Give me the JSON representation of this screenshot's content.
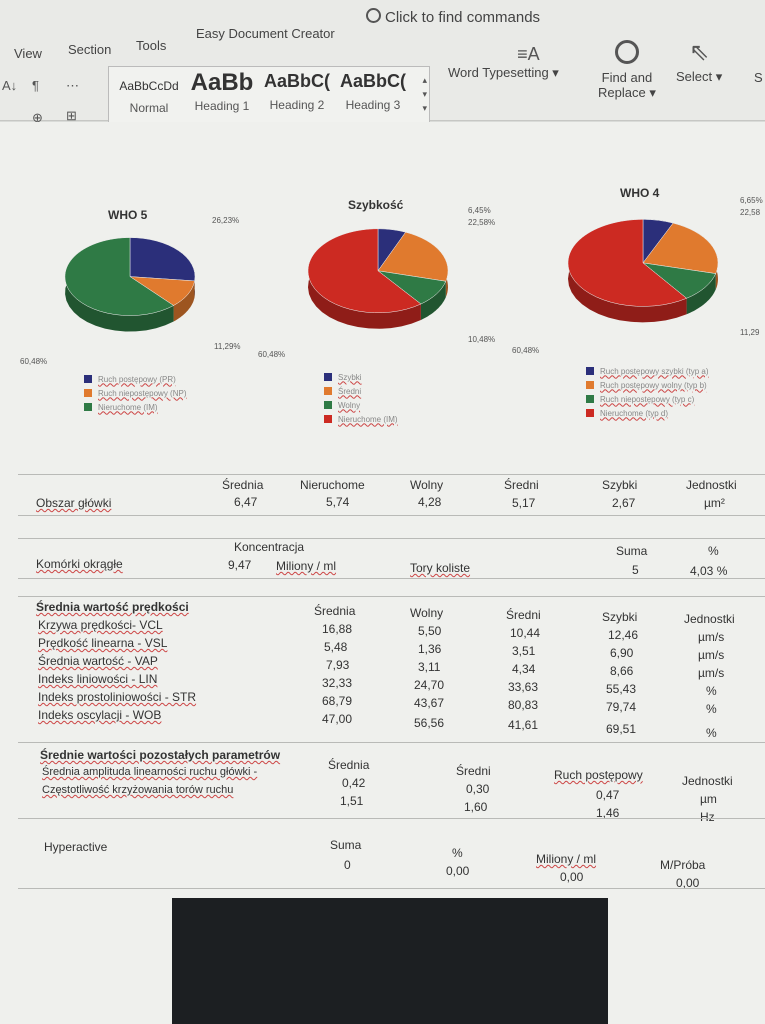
{
  "ribbon": {
    "menu": [
      "View",
      "Section",
      "Tools",
      "Easy Document Creator"
    ],
    "search_placeholder": "Click to find commands",
    "tool_glyphs": [
      "A↓",
      "¶",
      "⋯",
      "⊕",
      "⊞"
    ],
    "styles": [
      {
        "preview": "AaBbCcDd",
        "name": "Normal"
      },
      {
        "preview": "AaBb",
        "name": "Heading 1"
      },
      {
        "preview": "AaBbC(",
        "name": "Heading 2"
      },
      {
        "preview": "AaBbC(",
        "name": "Heading 3"
      }
    ],
    "word_typesetting": "Word Typesetting",
    "find_replace_1": "Find and",
    "find_replace_2": "Replace",
    "select": "Select",
    "cut_letter": "S"
  },
  "charts": [
    {
      "title": "WHO 5",
      "labels": [
        "26,23%",
        "11,29%",
        "60,48%"
      ],
      "slices": [
        26.23,
        11.29,
        60.48
      ],
      "colors": [
        "#2b2f7a",
        "#e07a2e",
        "#2f7a45"
      ],
      "legend": [
        "Ruch postępowy (PR)",
        "Ruch niepostępowy (NP)",
        "Nieruchome (IM)"
      ]
    },
    {
      "title": "Szybkość",
      "labels": [
        "6,45%",
        "22,58%",
        "10,48%",
        "60,48%"
      ],
      "slices": [
        6.45,
        22.58,
        10.48,
        60.48
      ],
      "colors": [
        "#2b2f7a",
        "#e07a2e",
        "#2f7a45",
        "#cc2a22"
      ],
      "legend": [
        "Szybki",
        "Średni",
        "Wolny",
        "Nieruchome (IM)"
      ]
    },
    {
      "title": "WHO 4",
      "labels": [
        "6,65%",
        "22,58",
        "11,29",
        "60,48%"
      ],
      "slices": [
        6.65,
        22.58,
        11.29,
        60.48
      ],
      "colors": [
        "#2b2f7a",
        "#e07a2e",
        "#2f7a45",
        "#cc2a22"
      ],
      "legend": [
        "Ruch postępowy szybki (typ a)",
        "Ruch postępowy wolny (typ b)",
        "Ruch niepostępowy (typ c)",
        "Nieruchome (typ d)"
      ]
    }
  ],
  "head_area": {
    "label": "Obszar główki",
    "headers": [
      "Średnia",
      "Nieruchome",
      "Wolny",
      "Średni",
      "Szybki",
      "Jednostki"
    ],
    "values": [
      "6,47",
      "5,74",
      "4,28",
      "5,17",
      "2,67",
      "µm²"
    ]
  },
  "round_cells": {
    "label": "Komórki okrągłe",
    "conc_header": "Koncentracja",
    "conc_value": "9,47",
    "conc_unit": "Miliony / ml",
    "tracks_label": "Tory koliste",
    "sum_header": "Suma",
    "sum_value": "5",
    "pct_header": "%",
    "pct_value": "4,03 %"
  },
  "velocity": {
    "title": "Średnia wartość prędkości",
    "headers": [
      "Średnia",
      "Wolny",
      "Średni",
      "Szybki",
      "Jednostki"
    ],
    "rows": [
      {
        "label": "Krzywa prędkości- VCL",
        "values": [
          "16,88",
          "5,50",
          "10,44",
          "12,46",
          "µm/s"
        ]
      },
      {
        "label": "Prędkość linearna - VSL",
        "values": [
          "5,48",
          "1,36",
          "3,51",
          "6,90",
          "µm/s"
        ]
      },
      {
        "label": "Średnia wartość - VAP",
        "values": [
          "7,93",
          "3,11",
          "4,34",
          "8,66",
          "µm/s"
        ]
      },
      {
        "label": "Indeks liniowości - LIN",
        "values": [
          "32,33",
          "24,70",
          "33,63",
          "55,43",
          "%"
        ]
      },
      {
        "label": "Indeks prostoliniowości - STR",
        "values": [
          "68,79",
          "43,67",
          "80,83",
          "79,74",
          "%"
        ]
      },
      {
        "label": "Indeks oscylacji - WOB",
        "values": [
          "47,00",
          "56,56",
          "41,61",
          "69,51",
          "%"
        ]
      }
    ]
  },
  "other": {
    "title": "Średnie wartości pozostałych parametrów",
    "headers": [
      "Średnia",
      "Średni",
      "Ruch postępowy",
      "Jednostki"
    ],
    "rows": [
      {
        "label": "Średnia amplituda linearności ruchu główki -",
        "values": [
          "0,42",
          "0,30",
          "0,47",
          "µm"
        ]
      },
      {
        "label": "Częstotliwość krzyżowania torów ruchu",
        "values": [
          "1,51",
          "1,60",
          "1,46",
          "Hz"
        ]
      }
    ]
  },
  "hyper": {
    "label": "Hyperactive",
    "headers": [
      "Suma",
      "%",
      "Miliony / ml",
      "M/Próba"
    ],
    "values": [
      "0",
      "0,00",
      "0,00",
      "0,00"
    ]
  }
}
